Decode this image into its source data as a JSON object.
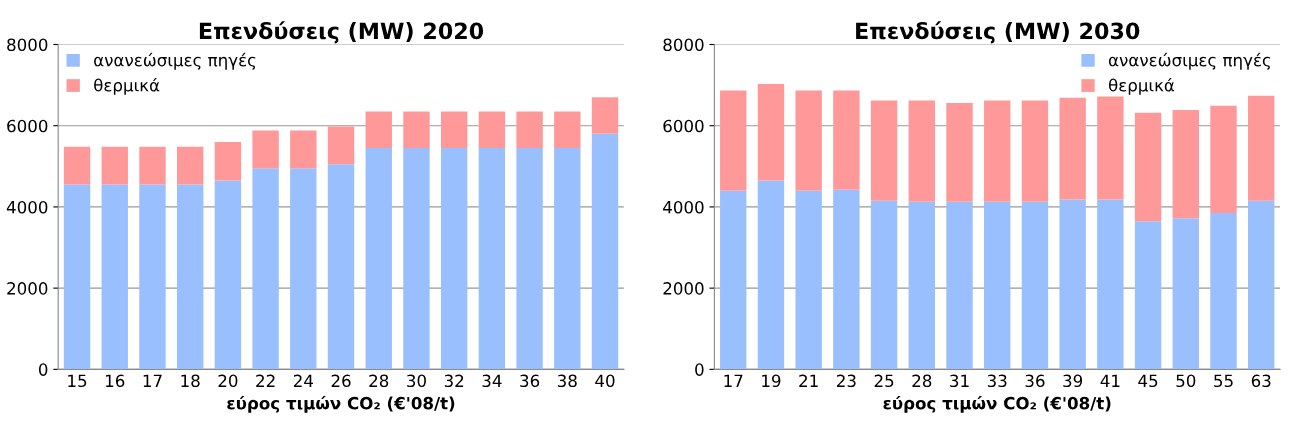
{
  "chart_data": [
    {
      "type": "bar",
      "title": "Επενδύσεις (MW) 2020",
      "xlabel": "εύρος τιμών CO₂ (€'08/t)",
      "stacked": true,
      "categories": [
        "15",
        "16",
        "17",
        "18",
        "20",
        "22",
        "24",
        "26",
        "28",
        "30",
        "32",
        "34",
        "36",
        "38",
        "40"
      ],
      "series": [
        {
          "name": "ανανεώσιμες πηγές",
          "color": "#99bfff",
          "values": [
            4550,
            4550,
            4550,
            4550,
            4650,
            4950,
            4950,
            5050,
            5450,
            5450,
            5450,
            5450,
            5450,
            5450,
            5800
          ]
        },
        {
          "name": "θερμικά",
          "color": "#ff9999",
          "values": [
            930,
            930,
            930,
            930,
            950,
            930,
            930,
            930,
            900,
            900,
            900,
            900,
            900,
            900,
            900
          ]
        }
      ],
      "ylim": [
        0,
        8000
      ],
      "yticks": [
        0,
        2000,
        4000,
        6000,
        8000
      ],
      "grid": "y",
      "legend": "top left"
    },
    {
      "type": "bar",
      "title": "Επενδύσεις (MW) 2030",
      "xlabel": "εύρος τιμών CO₂ (€'08/t)",
      "stacked": true,
      "categories": [
        "17",
        "19",
        "21",
        "23",
        "25",
        "28",
        "31",
        "33",
        "36",
        "39",
        "41",
        "45",
        "50",
        "55",
        "63"
      ],
      "series": [
        {
          "name": "ανανεώσιμες πηγές",
          "color": "#99bfff",
          "values": [
            4400,
            4650,
            4400,
            4420,
            4150,
            4130,
            4130,
            4130,
            4130,
            4180,
            4180,
            3650,
            3720,
            3850,
            4150
          ]
        },
        {
          "name": "θερμικά",
          "color": "#ff9999",
          "values": [
            2470,
            2380,
            2470,
            2450,
            2470,
            2490,
            2430,
            2490,
            2490,
            2510,
            2540,
            2670,
            2670,
            2640,
            2590
          ]
        }
      ],
      "ylim": [
        0,
        8000
      ],
      "yticks": [
        0,
        2000,
        4000,
        6000,
        8000
      ],
      "grid": "y",
      "legend": "top right"
    }
  ]
}
